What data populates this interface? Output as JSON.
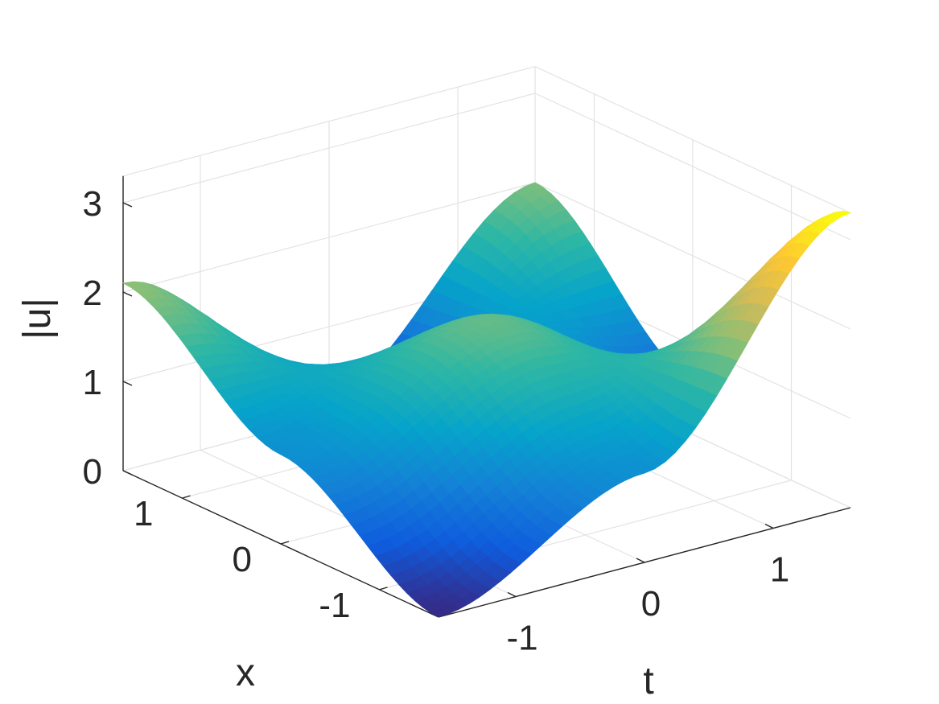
{
  "chart_data": {
    "type": "surface",
    "title": "",
    "xlabel": "x",
    "ylabel": "t",
    "zlabel": "|u|",
    "xlim": [
      -1.6,
      1.6
    ],
    "tlim": [
      -1.6,
      1.6
    ],
    "zlim": [
      0,
      3.3
    ],
    "x_ticks": [
      -1,
      0,
      1
    ],
    "x_tick_labels": [
      "-1",
      "0",
      "1"
    ],
    "t_ticks": [
      -1,
      0,
      1
    ],
    "t_tick_labels": [
      "-1",
      "0",
      "1"
    ],
    "z_ticks": [
      0,
      1,
      2,
      3
    ],
    "z_tick_labels": [
      "0",
      "1",
      "2",
      "3"
    ],
    "grid": true,
    "colormap": "parula",
    "colormap_stops": [
      "#352a87",
      "#0f5cdd",
      "#1481d6",
      "#06a4ca",
      "#2eb7a4",
      "#87bf77",
      "#d1bb59",
      "#fec832",
      "#f9fb0e"
    ],
    "surface_samples": {
      "x": [
        -1.6,
        0,
        1.6
      ],
      "t": [
        -1.6,
        0,
        1.6
      ],
      "z": [
        [
          0.0,
          1.0,
          3.3
        ],
        [
          1.0,
          1.9,
          0.6
        ],
        [
          2.1,
          0.2,
          2.0
        ]
      ],
      "note_rows": "z[i][j] sampled at x[i], t[j]"
    }
  }
}
